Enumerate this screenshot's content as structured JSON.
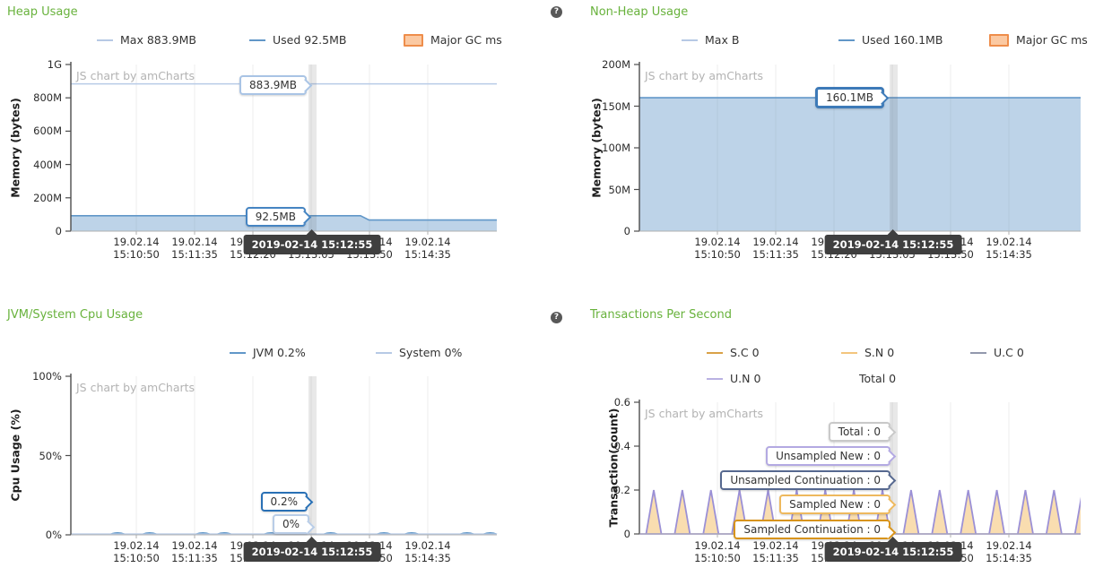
{
  "icons": {
    "help_glyph": "?"
  },
  "cursor": {
    "timestamp": "2019-02-14 15:12:55"
  },
  "watermark": "JS chart by amCharts",
  "x_axis": {
    "date": "19.02.14",
    "times": [
      "15:10:50",
      "15:11:35",
      "15:12:20",
      "15:13:05",
      "15:13:50",
      "15:14:35"
    ]
  },
  "charts": [
    {
      "id": "heap",
      "title": "Heap Usage",
      "y_axis_title": "Memory (bytes)",
      "y_ticks": [
        "1G",
        "800M",
        "600M",
        "400M",
        "200M",
        "0"
      ],
      "legend": [
        [
          {
            "label": "Max",
            "value": "883.9MB",
            "marker": "line",
            "color": "#b6c9e5"
          },
          {
            "label": "Used",
            "value": "92.5MB",
            "marker": "line",
            "color": "#6197c8"
          },
          {
            "label": "Major GC ms",
            "value": "",
            "marker": "box",
            "color": "#ee8d4b",
            "fill": "#fbc9a2"
          }
        ]
      ],
      "balloons": [
        {
          "id": "max",
          "text": "883.9MB",
          "color": "#a9c4e5"
        },
        {
          "id": "used",
          "text": "92.5MB",
          "color": "#4584c2"
        }
      ]
    },
    {
      "id": "nonheap",
      "title": "Non-Heap Usage",
      "y_axis_title": "Memory (bytes)",
      "y_ticks": [
        "200M",
        "150M",
        "100M",
        "50M",
        "0"
      ],
      "legend": [
        [
          {
            "label": "Max",
            "value": "B",
            "marker": "line",
            "color": "#b6c9e5"
          },
          {
            "label": "Used",
            "value": "160.1MB",
            "marker": "line",
            "color": "#6197c8"
          },
          {
            "label": "Major GC ms",
            "value": "",
            "marker": "box",
            "color": "#ee8d4b",
            "fill": "#fbc9a2"
          }
        ]
      ],
      "balloons": [
        {
          "id": "used",
          "text": "160.1MB",
          "color": "#3d7ab8"
        }
      ]
    },
    {
      "id": "cpu",
      "title": "JVM/System Cpu Usage",
      "y_axis_title": "Cpu Usage (%)",
      "y_ticks": [
        "100%",
        "50%",
        "0%"
      ],
      "legend": [
        [
          {
            "label": "JVM",
            "value": "0.2%",
            "marker": "line",
            "color": "#6197c8"
          },
          {
            "label": "System",
            "value": "0%",
            "marker": "line",
            "color": "#b6c9e5"
          }
        ]
      ],
      "balloons": [
        {
          "id": "jvm",
          "text": "0.2%",
          "color": "#2970b5"
        },
        {
          "id": "system",
          "text": "0%",
          "color": "#b9cde7"
        }
      ]
    },
    {
      "id": "tps",
      "title": "Transactions Per Second",
      "y_axis_title": "Transaction(count)",
      "y_ticks": [
        "0.6",
        "0.4",
        "0.2",
        "0"
      ],
      "legend": [
        [
          {
            "label": "S.C",
            "value": "0",
            "marker": "line",
            "color": "#d9a147"
          },
          {
            "label": "S.N",
            "value": "0",
            "marker": "line",
            "color": "#f3c57d"
          },
          {
            "label": "U.C",
            "value": "0",
            "marker": "line",
            "color": "#9298ad"
          }
        ],
        [
          {
            "label": "U.N",
            "value": "0",
            "marker": "line",
            "color": "#b9b1e2"
          },
          {
            "label": "Total",
            "value": "0",
            "marker": "none",
            "color": "#ffffff"
          }
        ]
      ],
      "balloons": [
        {
          "id": "total",
          "text": "Total : 0",
          "color": "#c9c9c9"
        },
        {
          "id": "un",
          "text": "Unsampled New : 0",
          "color": "#b3a9e2"
        },
        {
          "id": "uc",
          "text": "Unsampled Continuation : 0",
          "color": "#56688f"
        },
        {
          "id": "sn",
          "text": "Sampled New : 0",
          "color": "#eeb95e"
        },
        {
          "id": "sc",
          "text": "Sampled Continuation : 0",
          "color": "#d8941c"
        }
      ]
    }
  ],
  "chart_data": [
    {
      "type": "area",
      "title": "Heap Usage",
      "xlabel": "time (19.02.14, ticks every 45s from 15:10:50 to 15:14:35)",
      "ylabel": "Memory (bytes)",
      "ylim": [
        0,
        1000
      ],
      "unit": "MB",
      "cursor_readout": {
        "time": "2019-02-14 15:12:55",
        "Max": "883.9MB",
        "Used": "92.5MB"
      },
      "series": [
        {
          "name": "Max",
          "points": [
            {
              "x": 0,
              "y": 883.9
            },
            {
              "x": 1,
              "y": 883.9
            }
          ]
        },
        {
          "name": "Used",
          "points": [
            {
              "x": 0,
              "y": 92.5
            },
            {
              "x": 0.68,
              "y": 92.5
            },
            {
              "x": 0.7,
              "y": 67
            },
            {
              "x": 1,
              "y": 67
            }
          ]
        },
        {
          "name": "Major GC ms",
          "points": []
        }
      ]
    },
    {
      "type": "area",
      "title": "Non-Heap Usage",
      "xlabel": "time (19.02.14, ticks every 45s from 15:10:50 to 15:14:35)",
      "ylabel": "Memory (bytes)",
      "ylim": [
        0,
        200
      ],
      "unit": "MB",
      "cursor_readout": {
        "time": "2019-02-14 15:12:55",
        "Max": "B",
        "Used": "160.1MB"
      },
      "series": [
        {
          "name": "Max",
          "points": []
        },
        {
          "name": "Used",
          "points": [
            {
              "x": 0,
              "y": 160.1
            },
            {
              "x": 1,
              "y": 160.1
            }
          ]
        },
        {
          "name": "Major GC ms",
          "points": []
        }
      ]
    },
    {
      "type": "line",
      "title": "JVM/System Cpu Usage",
      "xlabel": "time (19.02.14, ticks every 45s from 15:10:50 to 15:14:35)",
      "ylabel": "Cpu Usage (%)",
      "ylim": [
        0,
        100
      ],
      "unit": "%",
      "cursor_readout": {
        "time": "2019-02-14 15:12:55",
        "JVM": "0.2%",
        "System": "0%"
      },
      "series": [
        {
          "name": "JVM",
          "baseline": 0.4,
          "bump_peak": 2.2,
          "bump_centers_x": [
            0.11,
            0.185,
            0.31,
            0.36,
            0.47,
            0.61,
            0.735,
            0.8,
            0.93,
            0.985
          ]
        },
        {
          "name": "System",
          "baseline": 0.1,
          "bump_peak": 0.1,
          "bump_centers_x": []
        }
      ]
    },
    {
      "type": "area",
      "title": "Transactions Per Second",
      "xlabel": "time (19.02.14, ticks every 45s from 15:10:50 to 15:14:35)",
      "ylabel": "Transaction(count)",
      "ylim": [
        0,
        0.6
      ],
      "unit": "count",
      "cursor_readout": {
        "time": "2019-02-14 15:12:55",
        "Sampled Continuation": 0,
        "Sampled New": 0,
        "Unsampled Continuation": 0,
        "Unsampled New": 0,
        "Total": 0
      },
      "series": [
        {
          "name": "S.C (Sampled Continuation)",
          "value": 0
        },
        {
          "name": "S.N (Sampled New)",
          "value": 0
        },
        {
          "name": "U.C (Unsampled Continuation)",
          "value": 0
        },
        {
          "name": "U.N (Unsampled New)",
          "value": 0
        },
        {
          "name": "Total",
          "value": 0
        }
      ],
      "spikes": {
        "shape": "triangles",
        "series": [
          "Sampled New",
          "Unsampled New"
        ],
        "peak": 0.2,
        "first_peak_x": 0.0325,
        "period_x": 0.0648
      }
    }
  ]
}
